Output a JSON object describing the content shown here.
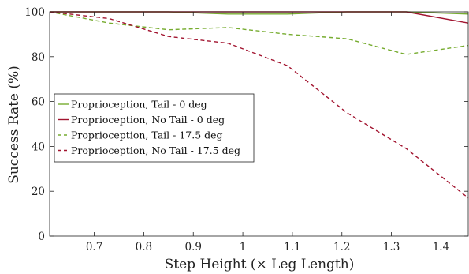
{
  "chart_data": {
    "type": "line",
    "xlabel": "Step Height (× Leg Length)",
    "ylabel": "Success Rate (%)",
    "xlim": [
      0.61,
      1.455
    ],
    "ylim": [
      0,
      100
    ],
    "xticks": [
      0.7,
      0.8,
      0.9,
      1,
      1.1,
      1.2,
      1.3,
      1.4
    ],
    "xtick_labels": [
      "0.7",
      "0.8",
      "0.9",
      "1",
      "1.1",
      "1.2",
      "1.3",
      "1.4"
    ],
    "yticks": [
      0,
      20,
      40,
      60,
      80,
      100
    ],
    "ytick_labels": [
      "0",
      "20",
      "40",
      "60",
      "80",
      "100"
    ],
    "grid": false,
    "legend_position": "middle-left",
    "series": [
      {
        "name": "Proprioception, Tail - 0 deg",
        "color": "#77AC30",
        "style": "solid",
        "x": [
          0.61,
          0.73,
          0.85,
          0.97,
          1.09,
          1.21,
          1.33,
          1.455
        ],
        "y": [
          100,
          100,
          100,
          99,
          99,
          100,
          100,
          99
        ]
      },
      {
        "name": "Proprioception, No Tail - 0 deg",
        "color": "#A2142F",
        "style": "solid",
        "x": [
          0.61,
          0.73,
          0.85,
          0.97,
          1.09,
          1.21,
          1.33,
          1.455
        ],
        "y": [
          100,
          100,
          100,
          100,
          100,
          100,
          100,
          95
        ]
      },
      {
        "name": "Proprioception, Tail - 17.5 deg",
        "color": "#77AC30",
        "style": "dashed",
        "x": [
          0.61,
          0.73,
          0.85,
          0.97,
          1.09,
          1.21,
          1.33,
          1.455
        ],
        "y": [
          100,
          95,
          92,
          93,
          90,
          88,
          81,
          85
        ]
      },
      {
        "name": "Proprioception, No Tail - 17.5 deg",
        "color": "#A2142F",
        "style": "dashed",
        "x": [
          0.61,
          0.73,
          0.85,
          0.97,
          1.09,
          1.21,
          1.33,
          1.455
        ],
        "y": [
          100,
          97,
          89,
          86,
          76,
          55,
          39,
          17
        ]
      }
    ]
  }
}
